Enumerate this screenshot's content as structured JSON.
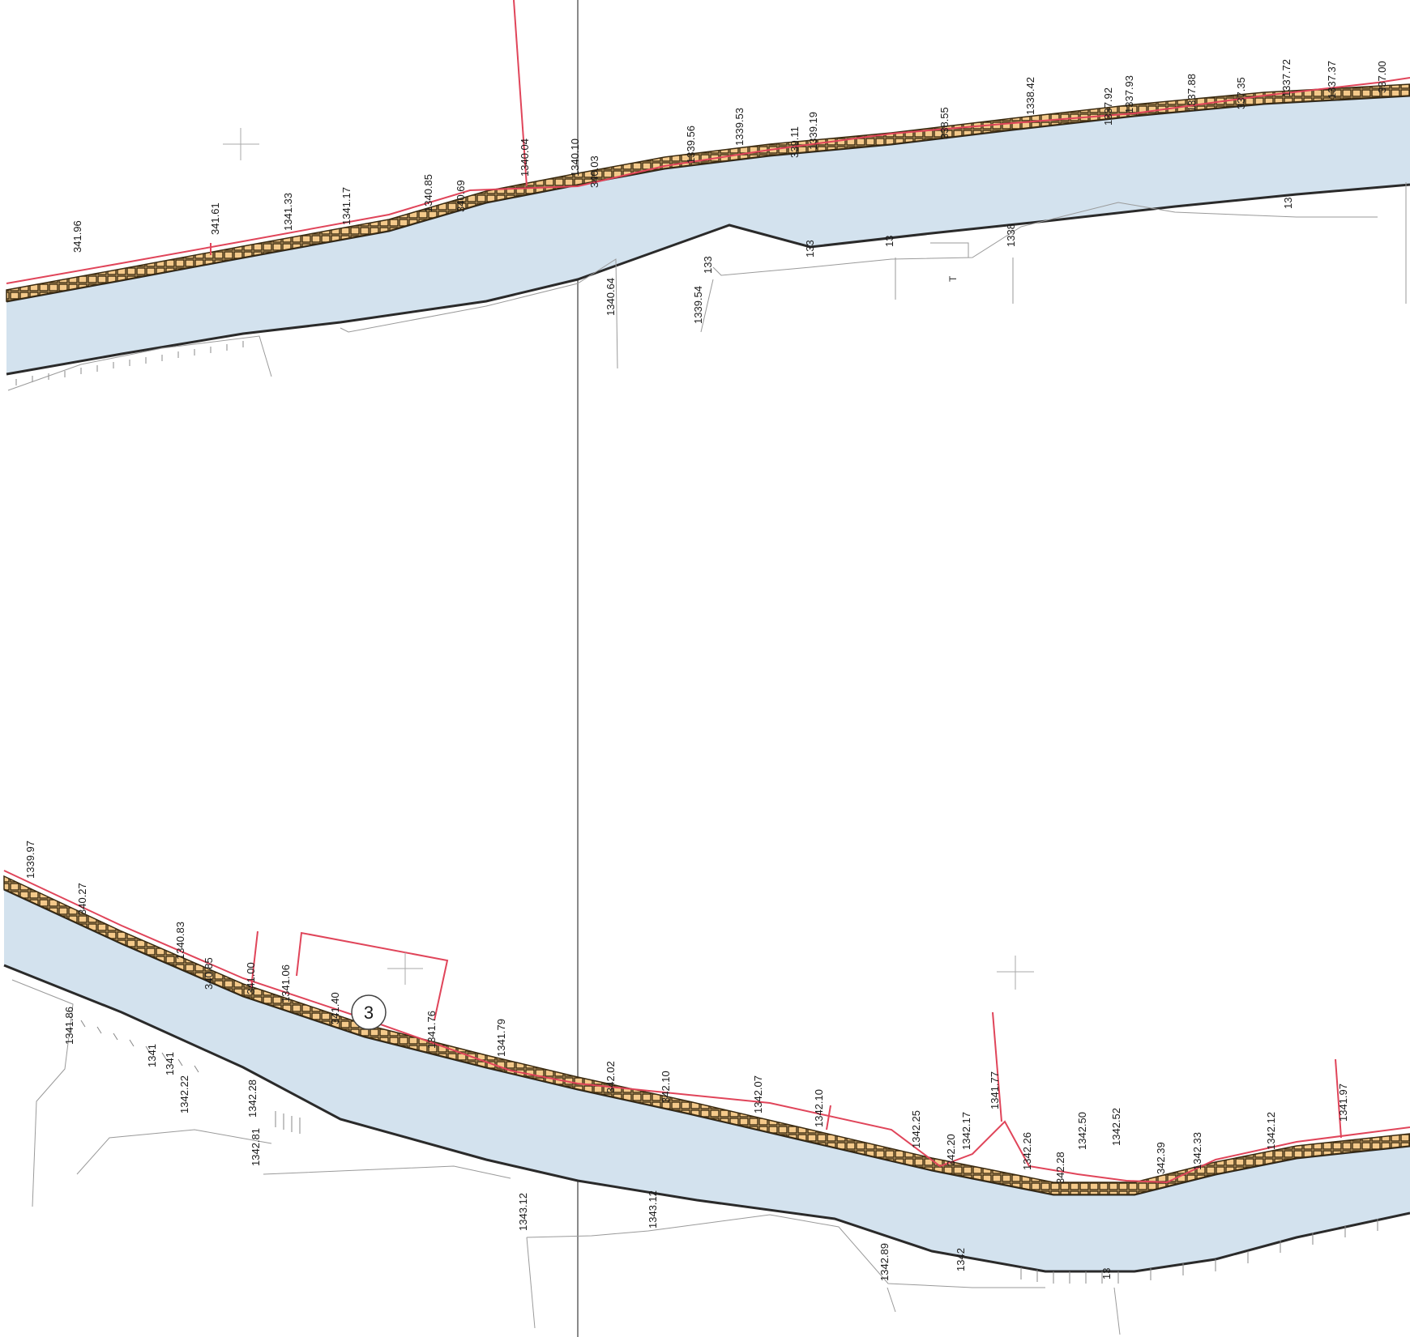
{
  "drawing": {
    "type": "river embankment plan (two sheets)",
    "colors": {
      "water": "#d3e2ee",
      "bank_line": "#2a2a2a",
      "parcel_line": "#e0455a",
      "revetment_fill": "#f4c98a",
      "revetment_stroke": "#3a2a10",
      "survey_line": "#9a9a9a",
      "divider": "#8a8a8a"
    },
    "circle_marker": "3",
    "misc_labels": [
      "T"
    ],
    "top_elevations": [
      "341.96",
      "341.61",
      "1341.33",
      "1341.17",
      "1340.85",
      "340.69",
      "1340.04",
      "1340.10",
      "340.03",
      "1339.56",
      "1339.53",
      "339.11",
      "1339.19",
      "338.55",
      "1338.42",
      "1337.92",
      "1337.93",
      "1337.88",
      "337.35",
      "1337.72",
      "1337.37",
      "337.00",
      "1340.64",
      "1339.54",
      "133",
      "133",
      "13",
      "1338",
      "13"
    ],
    "bottom_elevations": [
      "1339.97",
      "340.27",
      "1340.83",
      "340.85",
      "341.00",
      "1341.06",
      "341.40",
      "1341.76",
      "1341.79",
      "342.02",
      "342.10",
      "1342.07",
      "1342.10",
      "1342.25",
      "342.20",
      "1342.17",
      "1341.77",
      "1342.26",
      "342.28",
      "1342.50",
      "1342.52",
      "342.39",
      "1342.33",
      "1342.12",
      "1341.97",
      "1341.86",
      "1341",
      "1341",
      "1342.22",
      "1342.28",
      "1342.81",
      "1343.12",
      "1343.12",
      "1342.89",
      "1342",
      "13"
    ]
  }
}
